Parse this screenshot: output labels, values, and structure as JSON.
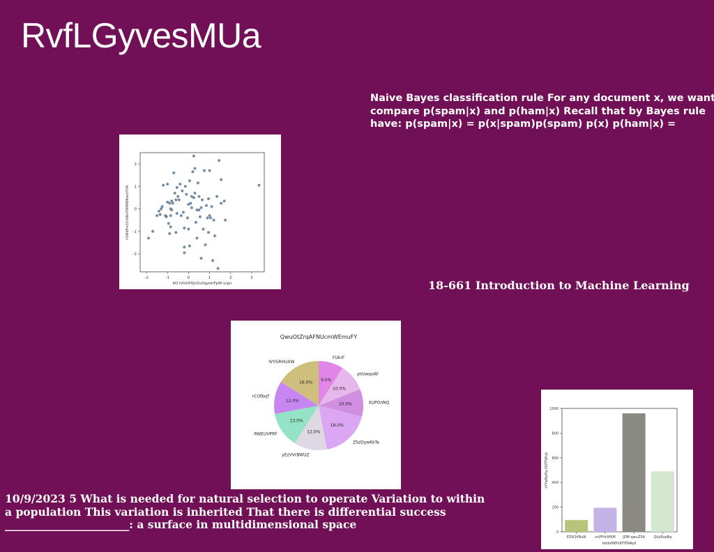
{
  "slide": {
    "title": "RvfLGyvesMUa",
    "nb_text": "Naive Bayes classification rule For any document x, we want compare p(spam|x) and p(ham|x) Recall that by Bayes rule have: p(spam|x) = p(x|spam)p(spam) p(x) p(ham|x) =",
    "course_text": "18-661 Introduction to Machine Learning",
    "date_text": "10/9/2023 5 What is needed for natural selection to operate Variation to within a population This variation is inherited That there is differential success _______________________: a surface in multidimensional space"
  },
  "chart_data": [
    {
      "type": "scatter",
      "xlabel": "bO iUUnPXJcGvOgzshFpW Lrpn",
      "ylabel": "rUWkPvcLYxNtoYWWWKwmYYA",
      "xlim": [
        -2.3,
        3.6
      ],
      "ylim": [
        -2.8,
        2.5
      ],
      "xticks": [
        -2,
        -1,
        0,
        1,
        2,
        3
      ],
      "yticks": [
        -2,
        -1,
        0,
        1,
        2
      ],
      "color": "#5d7a93",
      "points": [
        [
          -1.9,
          -1.3
        ],
        [
          -1.7,
          -1.0
        ],
        [
          -1.5,
          -0.3
        ],
        [
          -1.4,
          -0.1
        ],
        [
          -1.35,
          -0.25
        ],
        [
          -1.3,
          0.0
        ],
        [
          -1.25,
          0.1
        ],
        [
          -1.2,
          1.05
        ],
        [
          -1.1,
          -0.3
        ],
        [
          -1.05,
          -0.35
        ],
        [
          -1.0,
          1.1
        ],
        [
          -1.0,
          0.3
        ],
        [
          -0.95,
          -0.65
        ],
        [
          -0.9,
          0.25
        ],
        [
          -0.9,
          -1.1
        ],
        [
          -0.85,
          -0.8
        ],
        [
          -0.85,
          0.0
        ],
        [
          -0.8,
          -0.05
        ],
        [
          -0.8,
          0.35
        ],
        [
          -0.75,
          0.25
        ],
        [
          -0.7,
          1.6
        ],
        [
          -0.65,
          0.7
        ],
        [
          -0.6,
          0.4
        ],
        [
          -0.55,
          -0.2
        ],
        [
          -0.5,
          0.55
        ],
        [
          -0.45,
          0.4
        ],
        [
          -0.4,
          1.1
        ],
        [
          -0.35,
          -0.3
        ],
        [
          -0.3,
          0.8
        ],
        [
          -0.25,
          -0.15
        ],
        [
          -0.2,
          -0.85
        ],
        [
          -0.15,
          1.0
        ],
        [
          -0.1,
          0.65
        ],
        [
          -0.05,
          -0.4
        ],
        [
          0.0,
          -0.9
        ],
        [
          0.05,
          1.25
        ],
        [
          0.1,
          0.25
        ],
        [
          0.15,
          0.05
        ],
        [
          0.15,
          0.55
        ],
        [
          0.2,
          1.65
        ],
        [
          0.25,
          0.5
        ],
        [
          0.3,
          0.7
        ],
        [
          0.3,
          1.8
        ],
        [
          0.35,
          -0.6
        ],
        [
          0.4,
          -1.3
        ],
        [
          0.45,
          1.15
        ],
        [
          0.5,
          0.55
        ],
        [
          0.55,
          -0.35
        ],
        [
          0.6,
          0.05
        ],
        [
          0.65,
          0.4
        ],
        [
          0.7,
          -0.9
        ],
        [
          0.75,
          1.7
        ],
        [
          0.8,
          -1.6
        ],
        [
          0.85,
          0.15
        ],
        [
          0.9,
          -0.4
        ],
        [
          0.95,
          0.45
        ],
        [
          1.0,
          1.7
        ],
        [
          1.0,
          -0.3
        ],
        [
          1.05,
          -0.4
        ],
        [
          1.1,
          0.1
        ],
        [
          1.15,
          -2.3
        ],
        [
          1.2,
          -0.5
        ],
        [
          1.25,
          -1.2
        ],
        [
          1.35,
          0.55
        ],
        [
          1.45,
          2.15
        ],
        [
          1.55,
          1.3
        ],
        [
          1.55,
          0.25
        ],
        [
          1.7,
          0.35
        ],
        [
          1.75,
          -0.5
        ],
        [
          3.35,
          1.05
        ],
        [
          -0.2,
          -1.7
        ],
        [
          0.05,
          -1.65
        ],
        [
          0.5,
          -0.05
        ],
        [
          0.0,
          0.2
        ],
        [
          -0.55,
          0.95
        ],
        [
          0.6,
          -2.2
        ],
        [
          1.4,
          -2.65
        ],
        [
          -0.6,
          -1.05
        ],
        [
          0.25,
          2.35
        ],
        [
          0.4,
          -0.05
        ],
        [
          -0.85,
          -0.3
        ],
        [
          -0.2,
          -1.95
        ],
        [
          0.95,
          -1.05
        ]
      ]
    },
    {
      "type": "pie",
      "title": "QwuOtZrqAFNUcmWEmuFY",
      "slices": [
        {
          "label": "FUkrF",
          "value": 9.0,
          "pct_label": "9.0%",
          "color": "#e185e6"
        },
        {
          "label": "pVswqoAF",
          "value": 10.0,
          "pct_label": "10.0%",
          "color": "#e6b7ea"
        },
        {
          "label": "XUPOnNQ",
          "value": 10.0,
          "pct_label": "10.0%",
          "color": "#d08fe0"
        },
        {
          "label": "ZSzDywKkTa",
          "value": 18.0,
          "pct_label": "18.0%",
          "color": "#dba6f3"
        },
        {
          "label": "yEzVVrBWUZ",
          "value": 12.0,
          "pct_label": "12.0%",
          "color": "#ded8e3"
        },
        {
          "label": "RWEUVPRF",
          "value": 13.0,
          "pct_label": "13.0%",
          "color": "#95e3c6"
        },
        {
          "label": "rCOfbqT",
          "value": 12.0,
          "pct_label": "12.0%",
          "color": "#c786f2"
        },
        {
          "label": "lVYGRHUXW",
          "value": 16.0,
          "pct_label": "16.0%",
          "color": "#cfbf7c"
        }
      ]
    },
    {
      "type": "bar",
      "xlabel": "teldsfWPcKfYPbAyd",
      "ylabel": "zYYwNoPq XSPTWUp",
      "ylim": [
        0,
        1000
      ],
      "yticks": [
        0,
        200,
        400,
        600,
        800,
        1000
      ],
      "categories": [
        "EZtCkfNuN",
        "zrVPHcMXM",
        "JDM qwuZSA",
        "QLoRzpBq"
      ],
      "values": [
        95,
        195,
        960,
        490
      ],
      "colors": [
        "#b9c47b",
        "#c5b3e8",
        "#8a8a82",
        "#d3e8cf"
      ]
    }
  ]
}
